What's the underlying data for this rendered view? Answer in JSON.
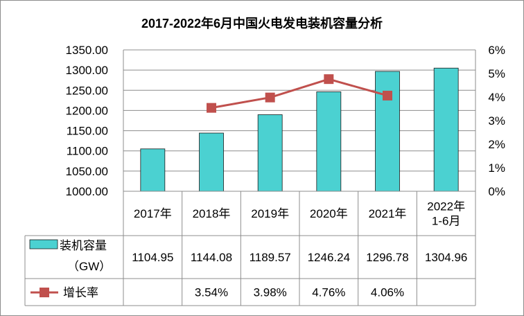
{
  "chart_data": {
    "type": "bar",
    "title": "2017-2022年6月中国火电发电装机容量分析",
    "categories": [
      [
        "2017年"
      ],
      [
        "2018年"
      ],
      [
        "2019年"
      ],
      [
        "2020年"
      ],
      [
        "2021年"
      ],
      [
        "2022年",
        "1-6月"
      ]
    ],
    "y_left": {
      "ylim": [
        1000,
        1350
      ],
      "ticks": [
        "1350.00",
        "1300.00",
        "1250.00",
        "1200.00",
        "1150.00",
        "1100.00",
        "1050.00",
        "1000.00"
      ]
    },
    "y_right": {
      "ylim": [
        0,
        6
      ],
      "ticks": [
        "6%",
        "5%",
        "4%",
        "3%",
        "2%",
        "1%",
        "0%"
      ]
    },
    "grid": true,
    "series": [
      {
        "name": [
          "装机容量",
          "（GW）"
        ],
        "type": "bar",
        "color": "#4bd1d1",
        "values": [
          1104.95,
          1144.08,
          1189.57,
          1246.24,
          1296.78,
          1304.96
        ],
        "labels": [
          "1104.95",
          "1144.08",
          "1189.57",
          "1246.24",
          "1296.78",
          "1304.96"
        ]
      },
      {
        "name": [
          "增长率"
        ],
        "type": "line",
        "color": "#c0504d",
        "values": [
          null,
          3.54,
          3.98,
          4.76,
          4.06,
          null
        ],
        "labels": [
          "",
          "3.54%",
          "3.98%",
          "4.76%",
          "4.06%",
          ""
        ]
      }
    ],
    "legend": "data-table"
  }
}
